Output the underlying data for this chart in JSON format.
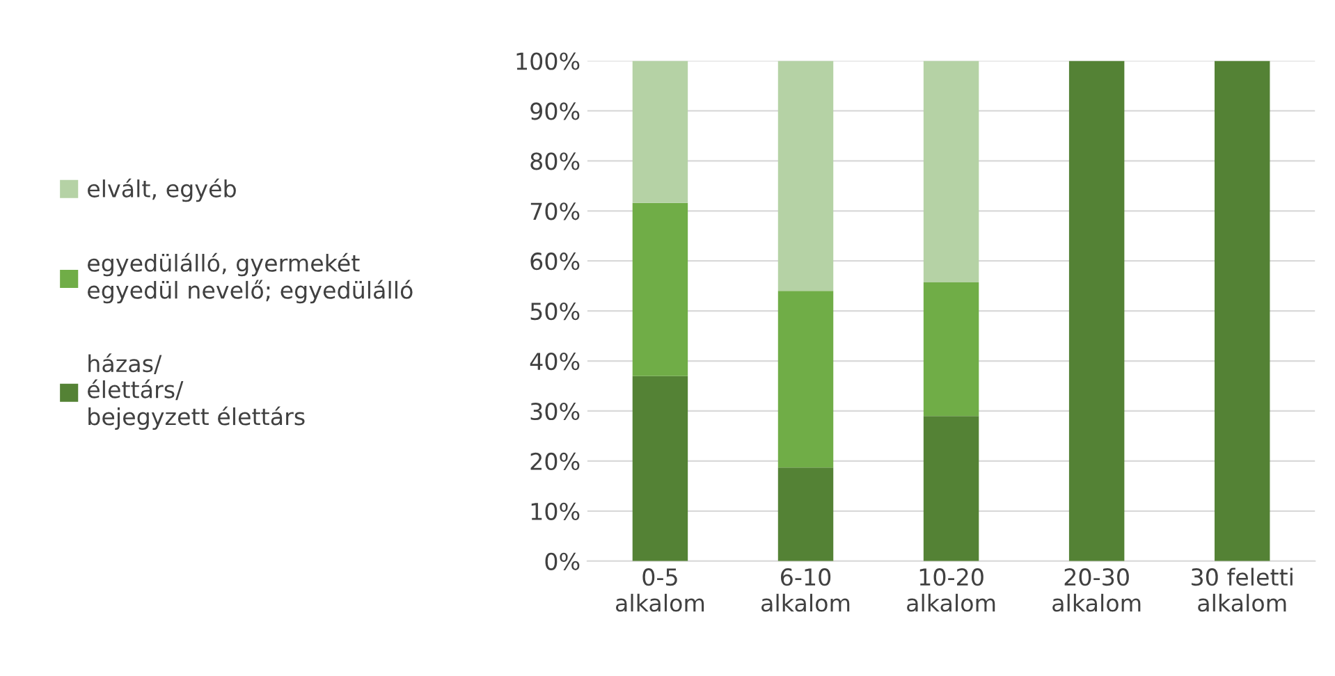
{
  "chart_data": {
    "type": "bar",
    "stacked": true,
    "categories": [
      "0-5\nalkalom",
      "6-10\nalkalom",
      "10-20\nalkalom",
      "20-30\nalkalom",
      "30 feletti\nalkalom"
    ],
    "series": [
      {
        "name": "házas/\nélettárs/\nbejegyzett élettárs",
        "color": "#548235",
        "values": [
          37,
          18.7,
          29,
          100,
          100
        ]
      },
      {
        "name": "egyedülálló, gyermekét\negyedül nevelő; egyedülálló",
        "color": "#70ad47",
        "values": [
          34.6,
          35.3,
          26.7,
          0,
          0
        ]
      },
      {
        "name": "elvált, egyéb",
        "color": "#b5d2a5",
        "values": [
          28.4,
          46,
          44.3,
          0,
          0
        ]
      }
    ],
    "ylim": [
      0,
      100
    ],
    "yticks": [
      {
        "value": 0,
        "label": "0%"
      },
      {
        "value": 10,
        "label": "10%"
      },
      {
        "value": 20,
        "label": "20%"
      },
      {
        "value": 30,
        "label": "30%"
      },
      {
        "value": 40,
        "label": "40%"
      },
      {
        "value": 50,
        "label": "50%"
      },
      {
        "value": 60,
        "label": "60%"
      },
      {
        "value": 70,
        "label": "70%"
      },
      {
        "value": 80,
        "label": "80%"
      },
      {
        "value": 90,
        "label": "90%"
      },
      {
        "value": 100,
        "label": "100%"
      }
    ],
    "grid": "y",
    "legend": "left"
  }
}
